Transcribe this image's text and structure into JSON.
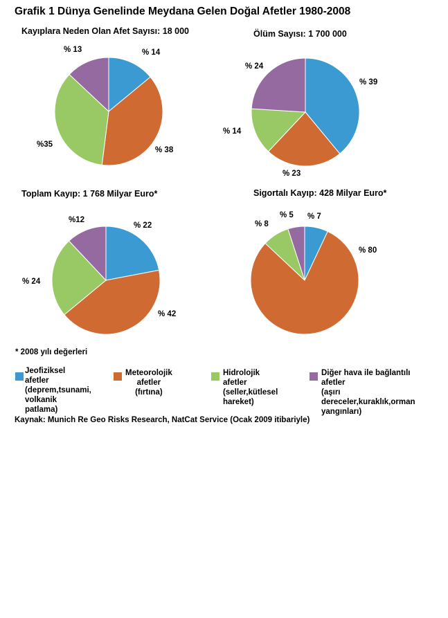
{
  "title": "Grafik 1  Dünya Genelinde Meydana Gelen Doğal Afetler 1980-2008",
  "colors": {
    "jeofiziksel": "#3a9ad1",
    "meteorolojik": "#d06a33",
    "hidrolojik": "#99c965",
    "diger": "#946aa0"
  },
  "chart_data": [
    {
      "type": "pie",
      "title": "Kayıplara Neden Olan Afet Sayısı: 18 000",
      "slices": [
        {
          "category": "jeofiziksel",
          "value": 14,
          "label": "% 14"
        },
        {
          "category": "meteorolojik",
          "value": 38,
          "label": "% 38"
        },
        {
          "category": "hidrolojik",
          "value": 35,
          "label": "%35"
        },
        {
          "category": "diger",
          "value": 13,
          "label": "% 13"
        }
      ]
    },
    {
      "type": "pie",
      "title": "Ölüm  Sayısı: 1 700 000",
      "slices": [
        {
          "category": "jeofiziksel",
          "value": 39,
          "label": "% 39"
        },
        {
          "category": "meteorolojik",
          "value": 23,
          "label": "% 23"
        },
        {
          "category": "hidrolojik",
          "value": 14,
          "label": "% 14"
        },
        {
          "category": "diger",
          "value": 24,
          "label": "% 24"
        }
      ]
    },
    {
      "type": "pie",
      "title": "Toplam Kayıp: 1 768 Milyar Euro*",
      "slices": [
        {
          "category": "jeofiziksel",
          "value": 22,
          "label": "% 22"
        },
        {
          "category": "meteorolojik",
          "value": 42,
          "label": "% 42"
        },
        {
          "category": "hidrolojik",
          "value": 24,
          "label": "% 24"
        },
        {
          "category": "diger",
          "value": 12,
          "label": "%12"
        }
      ]
    },
    {
      "type": "pie",
      "title": "Sigortalı Kayıp: 428 Milyar Euro*",
      "slices": [
        {
          "category": "jeofiziksel",
          "value": 7,
          "label": "% 7"
        },
        {
          "category": "meteorolojik",
          "value": 80,
          "label": "% 80"
        },
        {
          "category": "hidrolojik",
          "value": 8,
          "label": "% 8"
        },
        {
          "category": "diger",
          "value": 5,
          "label": "% 5"
        }
      ]
    }
  ],
  "footnote": "* 2008 yılı değerleri",
  "legend": [
    {
      "category": "jeofiziksel",
      "label": "Jeofiziksel afetler\n(deprem,tsunami,\nvolkanik patlama)"
    },
    {
      "category": "meteorolojik",
      "label": "Meteorolojik afetler\n(fırtına)"
    },
    {
      "category": "hidrolojik",
      "label": "Hidrolojik afetler\n(seller,kütlesel\nhareket)"
    },
    {
      "category": "diger",
      "label": "Diğer hava ile bağlantılı afetler\n(aşırı dereceler,kuraklık,orman\nyangınları)"
    }
  ],
  "source": "Kaynak: Munich Re Geo Risks Research, NatCat Service  (Ocak 2009 itibariyle)"
}
